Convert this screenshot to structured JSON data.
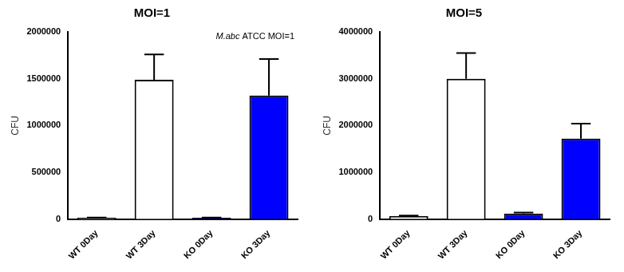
{
  "chart_data": [
    {
      "type": "bar",
      "title": "MOI=1",
      "annotation": "M.abc ATCC MOI=1",
      "y_label": "CFU",
      "categories": [
        "WT 0Day",
        "WT 3Day",
        "KO 0Day",
        "KO 3Day"
      ],
      "values": [
        15000,
        1490000,
        15000,
        1320000
      ],
      "errors": [
        3000,
        270000,
        3000,
        390000
      ],
      "colors": [
        "#ffffff",
        "#ffffff",
        "#0000ff",
        "#0000ff"
      ],
      "ylim": [
        0,
        2000000
      ],
      "yticks": [
        0,
        500000,
        1000000,
        1500000,
        2000000
      ],
      "grid": false
    },
    {
      "type": "bar",
      "title": "MOI=5",
      "y_label": "CFU",
      "categories": [
        "WT 0Day",
        "WT 3Day",
        "KO 0Day",
        "KO 3Day"
      ],
      "values": [
        70000,
        3000000,
        120000,
        1720000
      ],
      "errors": [
        8000,
        550000,
        20000,
        320000
      ],
      "colors": [
        "#ffffff",
        "#ffffff",
        "#0000ff",
        "#0000ff"
      ],
      "ylim": [
        0,
        4000000
      ],
      "yticks": [
        0,
        1000000,
        2000000,
        3000000,
        4000000
      ],
      "grid": false
    }
  ]
}
